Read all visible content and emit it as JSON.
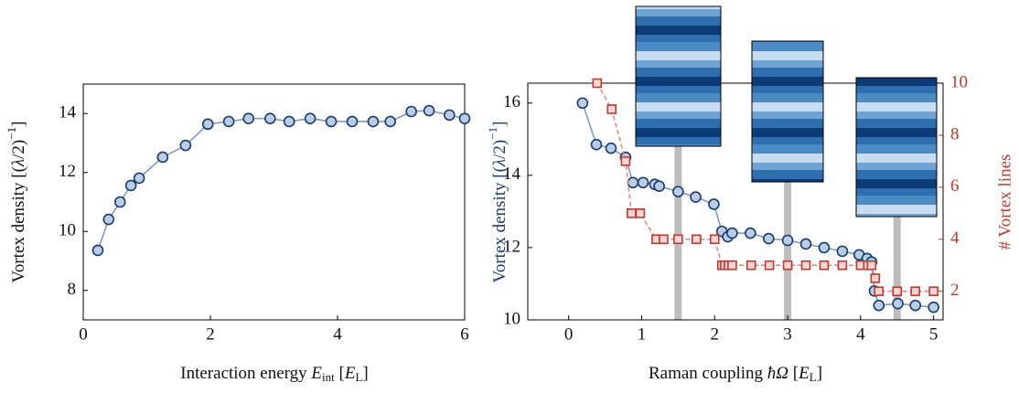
{
  "chart_data": [
    {
      "type": "line",
      "xlabel": [
        "Interaction energy ",
        "E",
        "int",
        " [",
        "E",
        "L",
        "]"
      ],
      "ylabel": [
        "Vortex density [(",
        "λ",
        "/2)",
        "−1",
        "]"
      ],
      "xlim": [
        0,
        6
      ],
      "xticks": [
        0,
        2,
        4,
        6
      ],
      "ylim": [
        7,
        15
      ],
      "yticks": [
        8,
        10,
        12,
        14
      ],
      "series": [
        {
          "x": [
            0.23,
            0.4,
            0.58,
            0.75,
            0.88,
            1.25,
            1.61,
            1.96,
            2.29,
            2.6,
            2.94,
            3.24,
            3.57,
            3.9,
            4.23,
            4.56,
            4.83,
            5.16,
            5.44,
            5.76,
            6.0
          ],
          "values": [
            9.36,
            10.41,
            11.0,
            11.56,
            11.81,
            12.52,
            12.92,
            13.64,
            13.73,
            13.83,
            13.83,
            13.73,
            13.83,
            13.73,
            13.73,
            13.73,
            13.73,
            14.07,
            14.1,
            13.95,
            13.83
          ],
          "color": "#1a3a6b",
          "fill": "#b8cde6",
          "line_color": "#7f99bf",
          "marker": "circle"
        }
      ]
    },
    {
      "type": "line",
      "xlabel": [
        "Raman coupling ",
        "ħΩ",
        " [",
        "E",
        "L",
        "]"
      ],
      "ylabel": [
        "Vortex density [(",
        "λ",
        "/2)",
        "−1",
        "]"
      ],
      "y2label": "# Vortex lines",
      "xlim": [
        -0.56,
        5.13
      ],
      "xticks": [
        0,
        1,
        2,
        3,
        4,
        5
      ],
      "ylim": [
        10,
        16.55
      ],
      "yticks": [
        10,
        12,
        14,
        16
      ],
      "y2lim": [
        0.9,
        10
      ],
      "y2ticks": [
        2,
        4,
        6,
        8,
        10
      ],
      "highlight_x": [
        1.5,
        3,
        4.5
      ],
      "series": [
        {
          "x": [
            0.19,
            0.38,
            0.58,
            0.78,
            0.88,
            1.02,
            1.18,
            1.24,
            1.5,
            1.74,
            1.99,
            2.1,
            2.18,
            2.24,
            2.49,
            2.74,
            3.0,
            3.25,
            3.5,
            3.75,
            3.98,
            4.09,
            4.15,
            4.19,
            4.25,
            4.51,
            4.75,
            5.0
          ],
          "values": [
            16.0,
            14.85,
            14.75,
            14.5,
            13.8,
            13.8,
            13.75,
            13.7,
            13.55,
            13.4,
            13.2,
            12.45,
            12.3,
            12.4,
            12.4,
            12.25,
            12.2,
            12.1,
            12.0,
            11.9,
            11.8,
            11.7,
            11.6,
            10.8,
            10.4,
            10.45,
            10.4,
            10.35
          ],
          "color": "#1a3a6b",
          "fill": "#b8cde6",
          "line_color": "#7f99bf",
          "marker": "circle"
        },
        {
          "x": [
            0.39,
            0.59,
            0.78,
            0.86,
            0.98,
            1.2,
            1.3,
            1.5,
            1.75,
            2.0,
            2.1,
            2.14,
            2.19,
            2.24,
            2.5,
            2.75,
            3.0,
            3.25,
            3.5,
            3.75,
            4.0,
            4.1,
            4.15,
            4.2,
            4.25,
            4.5,
            4.75,
            5.0
          ],
          "values": [
            10,
            9,
            7,
            5,
            5,
            4,
            4,
            4,
            4,
            4,
            3,
            3,
            3,
            3,
            3,
            3,
            3,
            3,
            3,
            3,
            3,
            3,
            3,
            2.5,
            2,
            2,
            2,
            2
          ],
          "color": "#c0392b",
          "fill": "#f6d5d5",
          "line_color": "#e08a8a",
          "marker": "square",
          "dashed": true,
          "axis": "y2"
        }
      ]
    }
  ]
}
